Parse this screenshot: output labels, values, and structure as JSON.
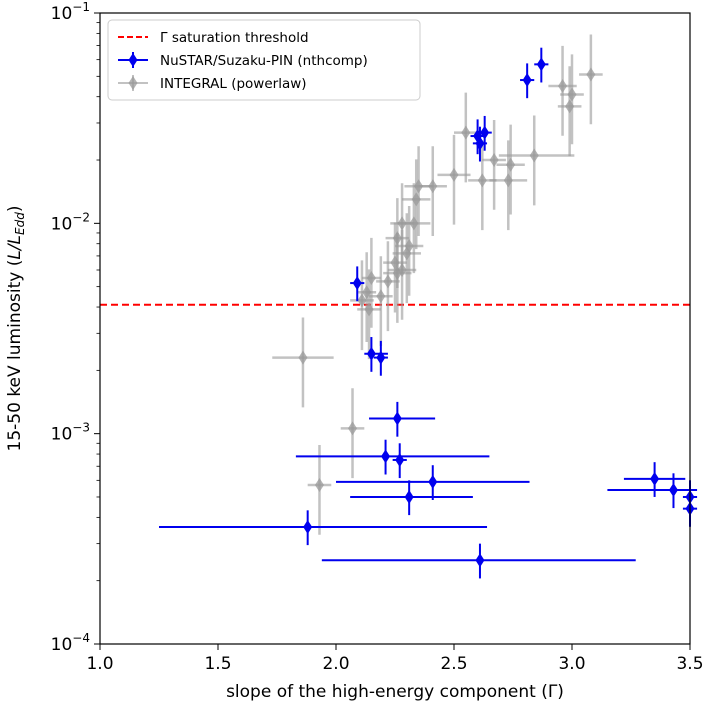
{
  "chart_data": {
    "type": "scatter",
    "xlabel": "slope of the high-energy component (Γ)",
    "ylabel_parts": [
      "15-50 keV luminosity (",
      "L/L",
      "Edd",
      ")"
    ],
    "xlim": [
      1.0,
      3.5
    ],
    "ylim": [
      0.0001,
      0.1
    ],
    "yscale": "log",
    "grid": false,
    "legend_position": "top-left",
    "x_ticks": [
      1.0,
      1.5,
      2.0,
      2.5,
      3.0,
      3.5
    ],
    "x_tick_labels": [
      "1.0",
      "1.5",
      "2.0",
      "2.5",
      "3.0",
      "3.5"
    ],
    "y_ticks": [
      0.0001,
      0.001,
      0.01,
      0.1
    ],
    "y_tick_labels": [
      {
        "base": "10",
        "exp": "−4"
      },
      {
        "base": "10",
        "exp": "−3"
      },
      {
        "base": "10",
        "exp": "−2"
      },
      {
        "base": "10",
        "exp": "−1"
      }
    ],
    "threshold": {
      "name": "Γ saturation threshold",
      "y": 0.0041,
      "color": "#ff0000"
    },
    "series": [
      {
        "name": "NuSTAR/Suzaku-PIN (nthcomp)",
        "color": "#0000ee",
        "points": [
          {
            "x": 2.09,
            "y": 0.0052
          },
          {
            "x": 2.15,
            "y": 0.0024,
            "xerr": [
              0.03,
              0.07
            ]
          },
          {
            "x": 2.19,
            "y": 0.0023
          },
          {
            "x": 2.26,
            "y": 0.00118,
            "xerr": [
              0.12,
              0.16
            ]
          },
          {
            "x": 2.21,
            "y": 0.00078,
            "xerr": [
              0.38,
              0.44
            ]
          },
          {
            "x": 2.27,
            "y": 0.00075
          },
          {
            "x": 2.41,
            "y": 0.00059,
            "xerr": [
              0.41,
              0.41
            ]
          },
          {
            "x": 2.31,
            "y": 0.0005,
            "xerr": [
              0.25,
              0.27
            ]
          },
          {
            "x": 1.88,
            "y": 0.00036,
            "xerr": [
              0.63,
              0.76
            ]
          },
          {
            "x": 2.61,
            "y": 0.00025,
            "xerr": [
              0.67,
              0.66
            ]
          },
          {
            "x": 3.35,
            "y": 0.00061,
            "xerr": [
              0.13,
              0.13
            ]
          },
          {
            "x": 3.43,
            "y": 0.00054,
            "xerr": [
              0.28,
              0.1
            ]
          },
          {
            "x": 3.5,
            "y": 0.0005
          },
          {
            "x": 3.5,
            "y": 0.00044
          },
          {
            "x": 2.6,
            "y": 0.026
          },
          {
            "x": 2.63,
            "y": 0.027
          },
          {
            "x": 2.61,
            "y": 0.024
          },
          {
            "x": 2.81,
            "y": 0.048
          },
          {
            "x": 2.87,
            "y": 0.057
          }
        ]
      },
      {
        "name": "INTEGRAL (powerlaw)",
        "color": "#999999",
        "points": [
          {
            "x": 3.08,
            "y": 0.051,
            "xerr": [
              0.05,
              0.05
            ]
          },
          {
            "x": 2.96,
            "y": 0.045,
            "xerr": [
              0.06,
              0.06
            ]
          },
          {
            "x": 2.99,
            "y": 0.036,
            "xerr": [
              0.05,
              0.05
            ]
          },
          {
            "x": 3.0,
            "y": 0.041,
            "xerr": [
              0.05,
              0.05
            ]
          },
          {
            "x": 2.55,
            "y": 0.027,
            "xerr": [
              0.05,
              0.05
            ]
          },
          {
            "x": 2.84,
            "y": 0.021,
            "xerr": [
              0.15,
              0.17
            ]
          },
          {
            "x": 2.67,
            "y": 0.02,
            "xerr": [
              0.05,
              0.05
            ]
          },
          {
            "x": 2.74,
            "y": 0.019,
            "xerr": [
              0.06,
              0.06
            ]
          },
          {
            "x": 2.73,
            "y": 0.016,
            "xerr": [
              0.08,
              0.08
            ]
          },
          {
            "x": 2.62,
            "y": 0.016,
            "xerr": [
              0.06,
              0.06
            ]
          },
          {
            "x": 2.5,
            "y": 0.017,
            "xerr": [
              0.07,
              0.07
            ]
          },
          {
            "x": 2.41,
            "y": 0.015,
            "xerr": [
              0.06,
              0.06
            ]
          },
          {
            "x": 2.35,
            "y": 0.015,
            "xerr": [
              0.06,
              0.06
            ]
          },
          {
            "x": 2.34,
            "y": 0.013,
            "xerr": [
              0.06,
              0.06
            ]
          },
          {
            "x": 2.33,
            "y": 0.01,
            "xerr": [
              0.07,
              0.07
            ]
          },
          {
            "x": 2.28,
            "y": 0.01,
            "xerr": [
              0.05,
              0.05
            ]
          },
          {
            "x": 2.26,
            "y": 0.0085,
            "xerr": [
              0.05,
              0.05
            ]
          },
          {
            "x": 2.31,
            "y": 0.0078,
            "xerr": [
              0.06,
              0.06
            ]
          },
          {
            "x": 2.3,
            "y": 0.0072,
            "xerr": [
              0.06,
              0.06
            ]
          },
          {
            "x": 2.25,
            "y": 0.0065,
            "xerr": [
              0.05,
              0.05
            ]
          },
          {
            "x": 2.28,
            "y": 0.006,
            "xerr": [
              0.06,
              0.06
            ]
          },
          {
            "x": 2.26,
            "y": 0.0058,
            "xerr": [
              0.06,
              0.06
            ]
          },
          {
            "x": 2.15,
            "y": 0.0055,
            "xerr": [
              0.04,
              0.04
            ]
          },
          {
            "x": 2.22,
            "y": 0.0053,
            "xerr": [
              0.05,
              0.05
            ]
          },
          {
            "x": 2.13,
            "y": 0.0047,
            "xerr": [
              0.04,
              0.04
            ]
          },
          {
            "x": 2.11,
            "y": 0.0043,
            "xerr": [
              0.05,
              0.05
            ]
          },
          {
            "x": 2.19,
            "y": 0.0045,
            "xerr": [
              0.05,
              0.05
            ]
          },
          {
            "x": 2.14,
            "y": 0.0039,
            "xerr": [
              0.05,
              0.05
            ]
          },
          {
            "x": 1.86,
            "y": 0.0023,
            "xerr": [
              0.13,
              0.13
            ]
          },
          {
            "x": 2.07,
            "y": 0.00106,
            "xerr": [
              0.05,
              0.05
            ]
          },
          {
            "x": 1.93,
            "y": 0.00057,
            "xerr": [
              0.05,
              0.05
            ]
          }
        ]
      }
    ]
  }
}
